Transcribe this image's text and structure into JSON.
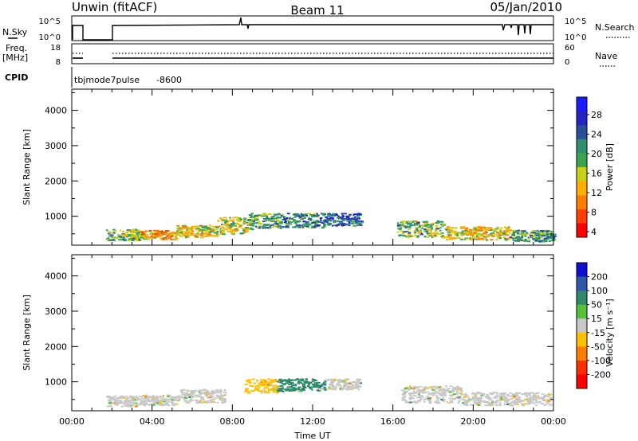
{
  "header": {
    "title_left": "Unwin (fitACF)",
    "title_center": "Beam 11",
    "title_right": "05/Jan/2010"
  },
  "status_panels": {
    "nsky_label": "N.Sky",
    "nsky_ticks": [
      "10^5",
      "10^0"
    ],
    "nsearch_label": "N.Search",
    "nsearch_ticks": [
      "10^5",
      "10^0"
    ],
    "freq_label": "Freq.",
    "freq_unit": "[MHz]",
    "freq_ticks": [
      "18",
      "8"
    ],
    "nave_label": "Nave",
    "nave_ticks": [
      "60",
      "0"
    ],
    "cpid_label": "CPID",
    "cpid_value": "tbjmode7pulse",
    "cpid_number": "-8600"
  },
  "chart_data": [
    {
      "type": "heatmap",
      "name": "power",
      "ylabel": "Slant Range [km]",
      "xlabel": "",
      "ylim": [
        180,
        4600
      ],
      "yticks": [
        "4000",
        "3000",
        "2000",
        "1000"
      ],
      "xticks": [
        "00:00",
        "04:00",
        "08:00",
        "12:00",
        "16:00",
        "20:00",
        "00:00"
      ],
      "colorbar_label": "Power [dB]",
      "colorbar_ticks": [
        "28",
        "24",
        "20",
        "16",
        "12",
        "8",
        "4"
      ],
      "colors": [
        "#1b1bff",
        "#2424c0",
        "#2a4f9a",
        "#2f8f6f",
        "#3aa64f",
        "#c8d21c",
        "#ffb000",
        "#ff8000",
        "#ff4000",
        "#ff0000"
      ],
      "regions": [
        {
          "t0": 1.7,
          "t1": 3.4,
          "r0": 330,
          "r1": 650,
          "value": 14
        },
        {
          "t0": 3.4,
          "t1": 5.2,
          "r0": 360,
          "r1": 620,
          "value": 20
        },
        {
          "t0": 5.2,
          "t1": 7.2,
          "r0": 420,
          "r1": 760,
          "value": 18
        },
        {
          "t0": 7.2,
          "t1": 8.8,
          "r0": 500,
          "r1": 1000,
          "value": 16
        },
        {
          "t0": 8.8,
          "t1": 10.4,
          "r0": 650,
          "r1": 1100,
          "value": 12
        },
        {
          "t0": 10.4,
          "t1": 12.6,
          "r0": 700,
          "r1": 1100,
          "value": 10
        },
        {
          "t0": 12.6,
          "t1": 14.4,
          "r0": 750,
          "r1": 1100,
          "value": 8
        },
        {
          "t0": 16.2,
          "t1": 18.6,
          "r0": 420,
          "r1": 900,
          "value": 14
        },
        {
          "t0": 18.6,
          "t1": 21.8,
          "r0": 350,
          "r1": 720,
          "value": 18
        },
        {
          "t0": 21.8,
          "t1": 24,
          "r0": 300,
          "r1": 620,
          "value": 12
        }
      ]
    },
    {
      "type": "heatmap",
      "name": "velocity",
      "ylabel": "Slant Range [km]",
      "xlabel": "Time UT",
      "ylim": [
        180,
        4600
      ],
      "yticks": [
        "4000",
        "3000",
        "2000",
        "1000"
      ],
      "xticks": [
        "00:00",
        "04:00",
        "08:00",
        "12:00",
        "16:00",
        "20:00",
        "00:00"
      ],
      "colorbar_label": "Velocity [m s⁻¹]",
      "colorbar_ticks": [
        "200",
        "100",
        "50",
        "15",
        "-15",
        "-50",
        "-100",
        "-200"
      ],
      "colors": [
        "#1010d0",
        "#2f59a8",
        "#2f8a6b",
        "#55c03a",
        "#c8c8c8",
        "#ffc000",
        "#ff8000",
        "#ff3000",
        "#ff0000"
      ],
      "regions": [
        {
          "t0": 1.7,
          "t1": 3.4,
          "r0": 320,
          "r1": 620,
          "value": 0
        },
        {
          "t0": 3.4,
          "t1": 5.4,
          "r0": 350,
          "r1": 640,
          "value": 0
        },
        {
          "t0": 5.4,
          "t1": 7.6,
          "r0": 420,
          "r1": 800,
          "value": 0
        },
        {
          "t0": 8.6,
          "t1": 10.2,
          "r0": 700,
          "r1": 1100,
          "value": -40
        },
        {
          "t0": 10.2,
          "t1": 12.6,
          "r0": 750,
          "r1": 1100,
          "value": 60
        },
        {
          "t0": 12.6,
          "t1": 14.3,
          "r0": 800,
          "r1": 1100,
          "value": 0
        },
        {
          "t0": 16.4,
          "t1": 19.4,
          "r0": 420,
          "r1": 900,
          "value": 0
        },
        {
          "t0": 19.4,
          "t1": 23.8,
          "r0": 350,
          "r1": 720,
          "value": 0
        }
      ]
    }
  ]
}
